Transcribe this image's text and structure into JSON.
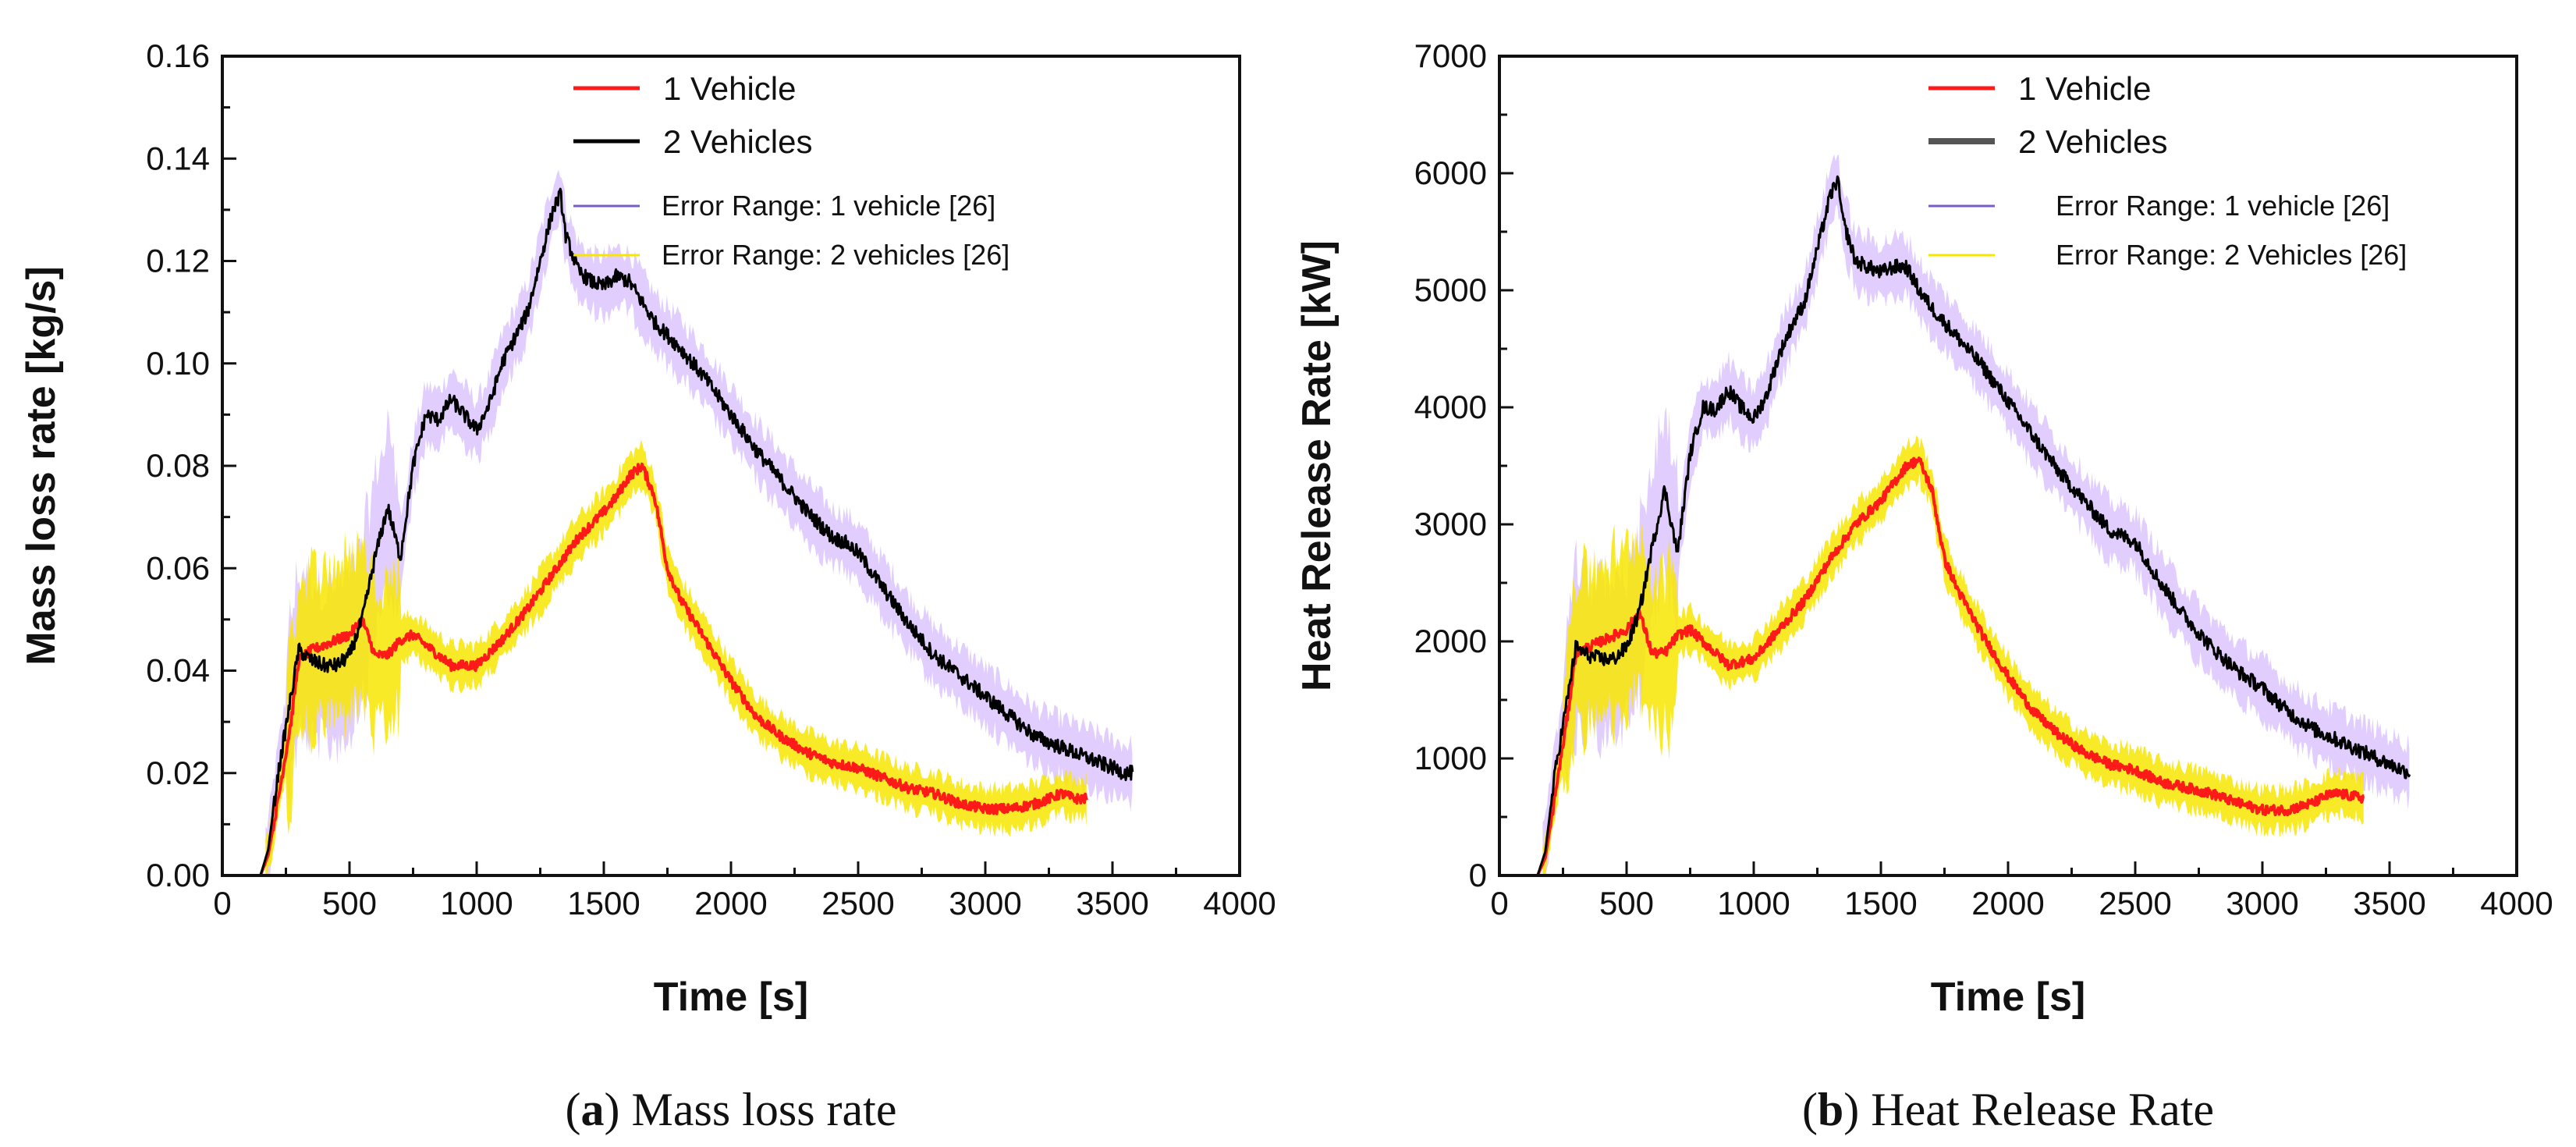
{
  "chart_data": [
    {
      "type": "line",
      "caption": {
        "paren_open": "(",
        "letter": "a",
        "rest": ") Mass loss rate"
      },
      "xlabel": "Time [s]",
      "ylabel": "Mass loss rate [kg/s]",
      "xlim": [
        0,
        4000
      ],
      "ylim": [
        0,
        0.16
      ],
      "xticks": [
        0,
        500,
        1000,
        1500,
        2000,
        2500,
        3000,
        3500,
        4000
      ],
      "yticks": [
        "0.00",
        "0.02",
        "0.04",
        "0.06",
        "0.08",
        "0.10",
        "0.12",
        "0.14",
        "0.16"
      ],
      "legend_position": "top-center",
      "colors": {
        "v1": "#ff1a1a",
        "v2": "#000000",
        "err1": "#c9a6ff",
        "err2": "#f7e600"
      },
      "legend": [
        "1 Vehicle",
        "2 Vehicles",
        "Error Range: 1 vehicle [26]",
        "Error Range: 2 vehicles [26]"
      ],
      "series": [
        {
          "name": "1 Vehicle",
          "x": [
            0,
            150,
            180,
            220,
            270,
            300,
            350,
            400,
            450,
            500,
            550,
            600,
            650,
            700,
            750,
            800,
            900,
            1000,
            1100,
            1200,
            1300,
            1400,
            1500,
            1550,
            1600,
            1650,
            1700,
            1750,
            1800,
            1900,
            2000,
            2100,
            2200,
            2300,
            2400,
            2500,
            2600,
            2700,
            2800,
            2900,
            3000,
            3100,
            3200,
            3250,
            3300,
            3350,
            3400
          ],
          "values": [
            0,
            0,
            0.004,
            0.015,
            0.03,
            0.042,
            0.044,
            0.045,
            0.046,
            0.047,
            0.05,
            0.043,
            0.043,
            0.046,
            0.047,
            0.045,
            0.041,
            0.041,
            0.046,
            0.052,
            0.059,
            0.066,
            0.071,
            0.074,
            0.078,
            0.08,
            0.074,
            0.06,
            0.054,
            0.046,
            0.038,
            0.031,
            0.027,
            0.024,
            0.022,
            0.021,
            0.019,
            0.017,
            0.016,
            0.014,
            0.013,
            0.013,
            0.014,
            0.015,
            0.016,
            0.015,
            0.015
          ]
        },
        {
          "name": "2 Vehicles",
          "x": [
            0,
            150,
            180,
            220,
            270,
            300,
            350,
            400,
            450,
            500,
            550,
            600,
            650,
            700,
            750,
            800,
            850,
            900,
            950,
            1000,
            1050,
            1100,
            1150,
            1200,
            1250,
            1300,
            1330,
            1350,
            1400,
            1450,
            1500,
            1550,
            1600,
            1650,
            1700,
            1800,
            1900,
            2000,
            2100,
            2200,
            2300,
            2400,
            2450,
            2500,
            2600,
            2700,
            2800,
            2900,
            3000,
            3100,
            3200,
            3300,
            3400,
            3500,
            3550,
            3580
          ],
          "values": [
            0,
            0,
            0.005,
            0.02,
            0.035,
            0.044,
            0.042,
            0.041,
            0.041,
            0.043,
            0.05,
            0.062,
            0.072,
            0.062,
            0.08,
            0.09,
            0.089,
            0.093,
            0.09,
            0.087,
            0.092,
            0.1,
            0.105,
            0.11,
            0.12,
            0.13,
            0.133,
            0.125,
            0.118,
            0.116,
            0.115,
            0.117,
            0.116,
            0.112,
            0.108,
            0.103,
            0.097,
            0.09,
            0.083,
            0.077,
            0.071,
            0.066,
            0.065,
            0.063,
            0.056,
            0.049,
            0.043,
            0.039,
            0.035,
            0.031,
            0.027,
            0.025,
            0.023,
            0.021,
            0.02,
            0.02
          ]
        }
      ]
    },
    {
      "type": "line",
      "caption": {
        "paren_open": "(",
        "letter": "b",
        "rest": ") Heat Release Rate"
      },
      "xlabel": "Time [s]",
      "ylabel": "Heat Release Rate [kW]",
      "xlim": [
        0,
        4000
      ],
      "ylim": [
        0,
        7000
      ],
      "xticks": [
        0,
        500,
        1000,
        1500,
        2000,
        2500,
        3000,
        3500,
        4000
      ],
      "yticks": [
        "0",
        "1000",
        "2000",
        "3000",
        "4000",
        "5000",
        "6000",
        "7000"
      ],
      "legend_position": "top-center",
      "colors": {
        "v1": "#ff1a1a",
        "v2": "#000000",
        "err1": "#c9a6ff",
        "err2": "#f7e600"
      },
      "legend": [
        "1 Vehicle",
        "2 Vehicles",
        "Error Range: 1 vehicle [26]",
        "Error Range: 2 Vehicles [26]"
      ],
      "series": [
        {
          "name": "1 Vehicle",
          "x": [
            0,
            150,
            180,
            220,
            270,
            300,
            350,
            400,
            450,
            500,
            550,
            600,
            650,
            700,
            750,
            800,
            900,
            1000,
            1100,
            1200,
            1300,
            1400,
            1500,
            1550,
            1600,
            1650,
            1700,
            1750,
            1800,
            1900,
            2000,
            2100,
            2200,
            2300,
            2400,
            2500,
            2600,
            2700,
            2800,
            2900,
            3000,
            3100,
            3200,
            3250,
            3300,
            3350,
            3400
          ],
          "values": [
            0,
            0,
            150,
            700,
            1400,
            1900,
            1950,
            2000,
            2050,
            2100,
            2250,
            1900,
            1900,
            2050,
            2100,
            2000,
            1800,
            1850,
            2100,
            2350,
            2700,
            3000,
            3200,
            3350,
            3500,
            3550,
            3300,
            2700,
            2450,
            2050,
            1700,
            1400,
            1200,
            1050,
            950,
            900,
            800,
            750,
            700,
            620,
            560,
            560,
            620,
            680,
            700,
            680,
            660
          ]
        },
        {
          "name": "2 Vehicles",
          "x": [
            0,
            150,
            180,
            220,
            270,
            300,
            350,
            400,
            450,
            500,
            550,
            600,
            650,
            700,
            750,
            800,
            850,
            900,
            950,
            1000,
            1050,
            1100,
            1150,
            1200,
            1250,
            1300,
            1330,
            1350,
            1400,
            1450,
            1500,
            1550,
            1600,
            1650,
            1700,
            1800,
            1900,
            2000,
            2100,
            2200,
            2300,
            2400,
            2450,
            2500,
            2600,
            2700,
            2800,
            2900,
            3000,
            3100,
            3200,
            3300,
            3400,
            3500,
            3550,
            3580
          ],
          "values": [
            0,
            0,
            200,
            900,
            1550,
            1950,
            1880,
            1850,
            1850,
            1950,
            2250,
            2800,
            3300,
            2750,
            3600,
            4000,
            3980,
            4150,
            4000,
            3900,
            4100,
            4450,
            4700,
            4900,
            5350,
            5800,
            5950,
            5600,
            5250,
            5200,
            5150,
            5200,
            5200,
            5000,
            4850,
            4600,
            4350,
            4050,
            3750,
            3450,
            3200,
            2950,
            2900,
            2850,
            2500,
            2200,
            1950,
            1750,
            1600,
            1400,
            1250,
            1150,
            1050,
            950,
            900,
            880
          ]
        }
      ]
    }
  ]
}
